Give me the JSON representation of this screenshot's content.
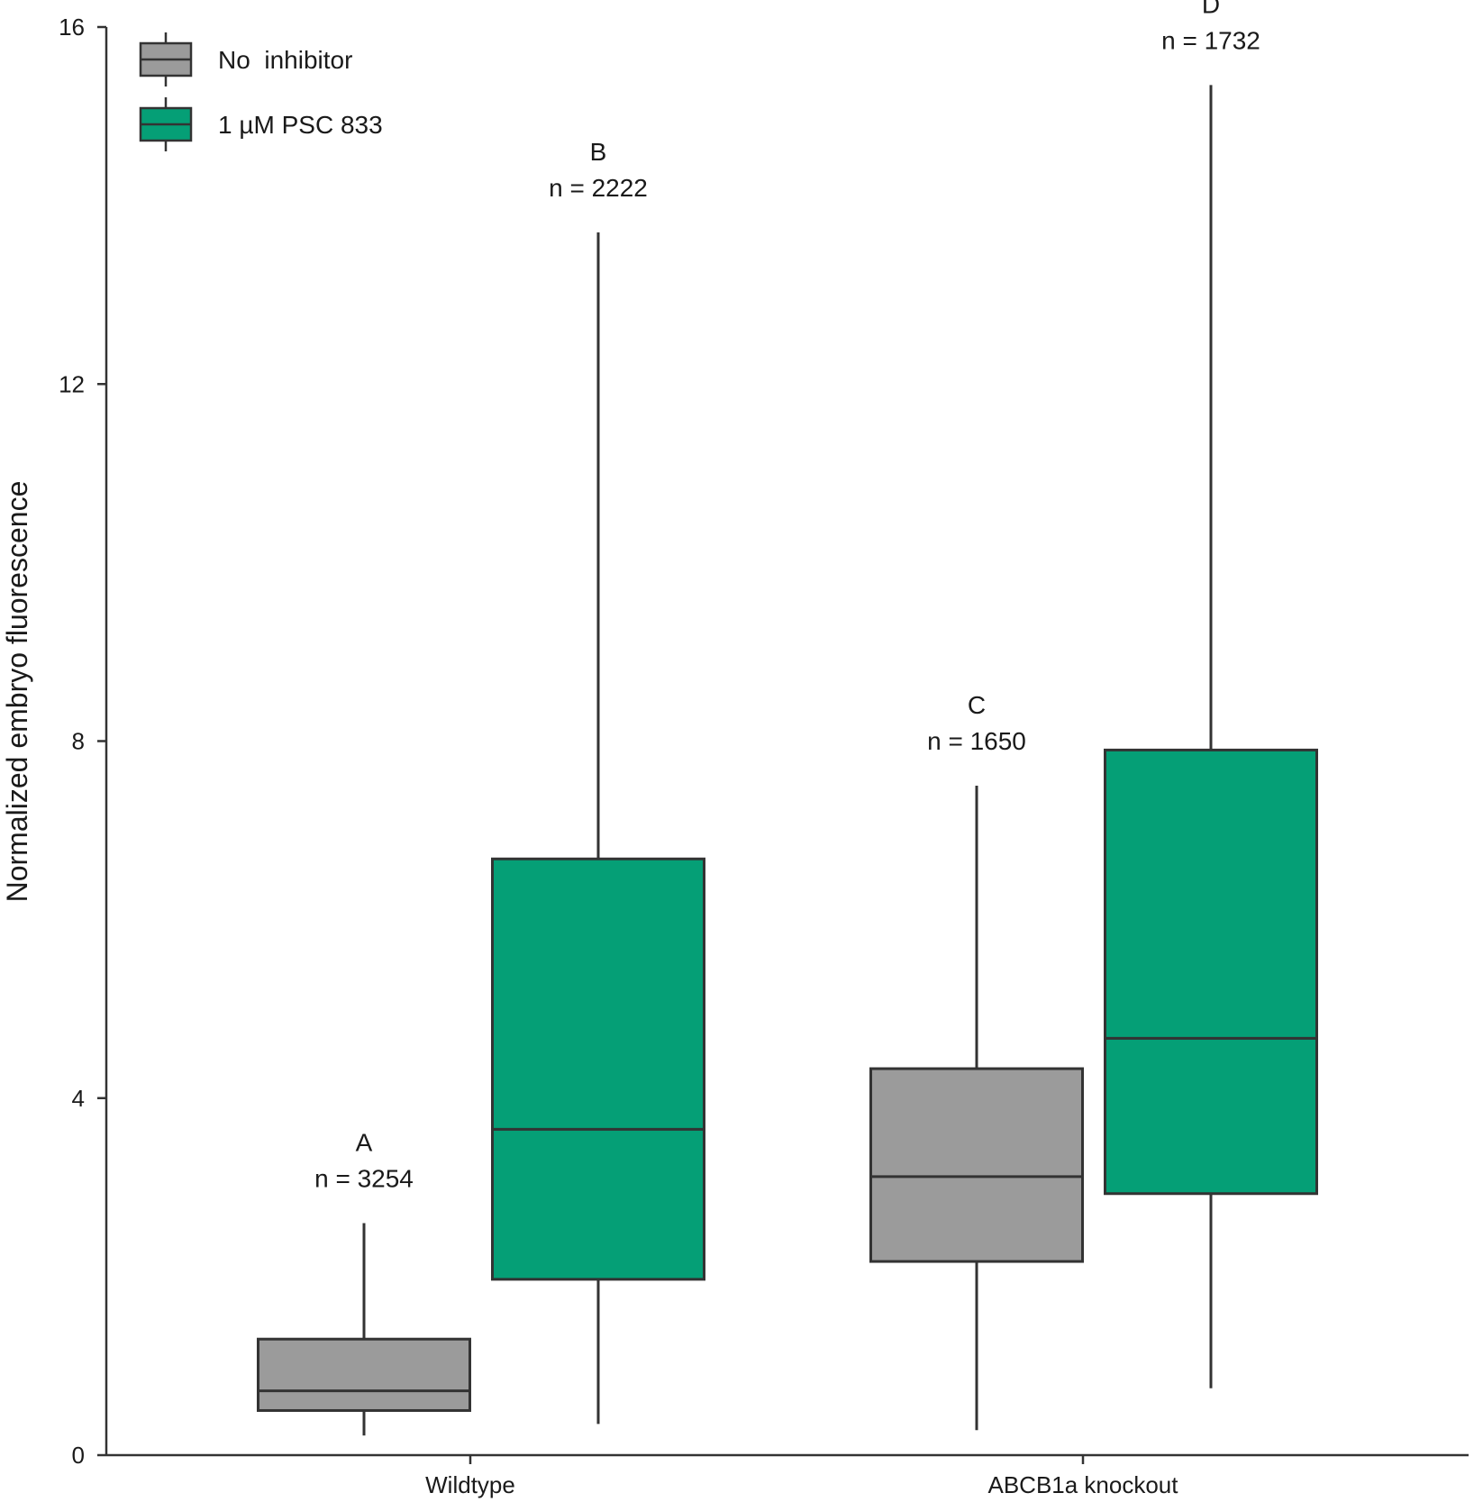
{
  "chart_data": {
    "type": "box",
    "ylabel": "Normalized embryo fluorescence",
    "xlabel": "",
    "ylim": [
      0,
      16
    ],
    "yticks": [
      0,
      4,
      8,
      12,
      16
    ],
    "categories": [
      "Wildtype",
      "ABCB1a knockout"
    ],
    "legend_position": "top-left",
    "series": [
      {
        "name": "No  inhibitor",
        "color": "#9b9b9b",
        "boxes": [
          {
            "category": "Wildtype",
            "whisker_low": 0.22,
            "q1": 0.5,
            "median": 0.72,
            "q3": 1.3,
            "whisker_high": 2.6
          },
          {
            "category": "ABCB1a knockout",
            "whisker_low": 0.28,
            "q1": 2.17,
            "median": 3.12,
            "q3": 4.33,
            "whisker_high": 7.5
          }
        ]
      },
      {
        "name": "1 µM PSC 833",
        "color": "#059f76",
        "boxes": [
          {
            "category": "Wildtype",
            "whisker_low": 0.35,
            "q1": 1.97,
            "median": 3.65,
            "q3": 6.68,
            "whisker_high": 13.7
          },
          {
            "category": "ABCB1a knockout",
            "whisker_low": 0.75,
            "q1": 2.93,
            "median": 4.67,
            "q3": 7.9,
            "whisker_high": 15.35
          }
        ]
      }
    ],
    "annotations": [
      {
        "series": 0,
        "category": "Wildtype",
        "letter": "A",
        "n": "n = 3254"
      },
      {
        "series": 1,
        "category": "Wildtype",
        "letter": "B",
        "n": "n = 2222"
      },
      {
        "series": 0,
        "category": "ABCB1a knockout",
        "letter": "C",
        "n": "n = 1650"
      },
      {
        "series": 1,
        "category": "ABCB1a knockout",
        "letter": "D",
        "n": "n = 1732"
      }
    ]
  }
}
